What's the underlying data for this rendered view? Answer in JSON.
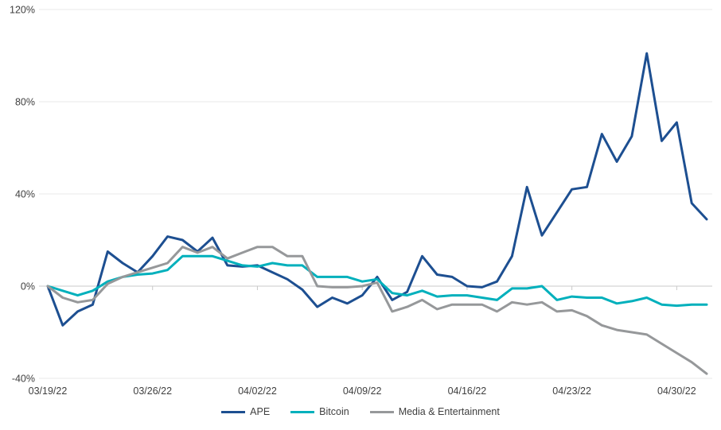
{
  "chart_data": {
    "type": "line",
    "title": "",
    "xlabel": "",
    "ylabel": "",
    "grid": true,
    "legend_position": "bottom-center",
    "x_tick_labels": [
      "03/19/22",
      "03/26/22",
      "04/02/22",
      "04/09/22",
      "04/16/22",
      "04/23/22",
      "04/30/22"
    ],
    "y_tick_labels": [
      "120%",
      "80%",
      "40%",
      "0%",
      "-40%"
    ],
    "y_tick_values": [
      120,
      80,
      40,
      0,
      -40
    ],
    "ylim": [
      -44,
      124
    ],
    "dates": [
      "03/19/22",
      "03/20/22",
      "03/21/22",
      "03/22/22",
      "03/23/22",
      "03/24/22",
      "03/25/22",
      "03/26/22",
      "03/27/22",
      "03/28/22",
      "03/29/22",
      "03/30/22",
      "03/31/22",
      "04/01/22",
      "04/02/22",
      "04/03/22",
      "04/04/22",
      "04/05/22",
      "04/06/22",
      "04/07/22",
      "04/08/22",
      "04/09/22",
      "04/10/22",
      "04/11/22",
      "04/12/22",
      "04/13/22",
      "04/14/22",
      "04/15/22",
      "04/16/22",
      "04/17/22",
      "04/18/22",
      "04/19/22",
      "04/20/22",
      "04/21/22",
      "04/22/22",
      "04/23/22",
      "04/24/22",
      "04/25/22",
      "04/26/22",
      "04/27/22",
      "04/28/22",
      "04/29/22",
      "04/30/22",
      "05/01/22",
      "05/02/22"
    ],
    "unit": "percent",
    "series": [
      {
        "name": "APE",
        "color": "#1d4f91",
        "values": [
          0,
          -17,
          -11,
          -8,
          15,
          10,
          6,
          13,
          21.5,
          20,
          15,
          21,
          9,
          8.5,
          9,
          6,
          3,
          -1.5,
          -9,
          -5,
          -7.5,
          -4,
          4,
          -6,
          -2.5,
          13,
          5,
          4,
          0,
          -0.5,
          2,
          13,
          43,
          22,
          32,
          42,
          43,
          66,
          54,
          65,
          101,
          63,
          71,
          36,
          29
        ]
      },
      {
        "name": "Bitcoin",
        "color": "#00b0bc",
        "values": [
          0,
          -2,
          -4,
          -2,
          2,
          4,
          5,
          5.5,
          7,
          13,
          13,
          13,
          11,
          9,
          8.5,
          10,
          9,
          9,
          4,
          4,
          4,
          2,
          3,
          -3,
          -4,
          -2,
          -4.5,
          -4,
          -4,
          -5,
          -6,
          -1,
          -1,
          0,
          -6,
          -4.5,
          -5,
          -5,
          -7.5,
          -6.5,
          -5,
          -8,
          -8.5,
          -8,
          -8
        ]
      },
      {
        "name": "Media & Entertainment",
        "color": "#96989a",
        "values": [
          0,
          -5,
          -7,
          -6,
          1,
          4,
          6,
          8,
          10,
          17,
          14.5,
          17,
          12,
          14.5,
          17,
          17,
          13,
          13,
          0,
          -0.5,
          -0.5,
          0,
          1.5,
          -11,
          -9,
          -6,
          -10,
          -8,
          -8,
          -8,
          -11,
          -7,
          -8,
          -7,
          -11,
          -10.5,
          -13,
          -17,
          -19,
          -20,
          -21,
          -25,
          -29,
          -33,
          -38
        ]
      }
    ],
    "colors": {
      "gridline": "#e8e8e8",
      "zero_axis": "#c9c9c9",
      "tick_text": "#3f3f3f",
      "background": "#ffffff"
    }
  },
  "legend": {
    "items": [
      {
        "label": "APE"
      },
      {
        "label": "Bitcoin"
      },
      {
        "label": "Media & Entertainment"
      }
    ]
  }
}
